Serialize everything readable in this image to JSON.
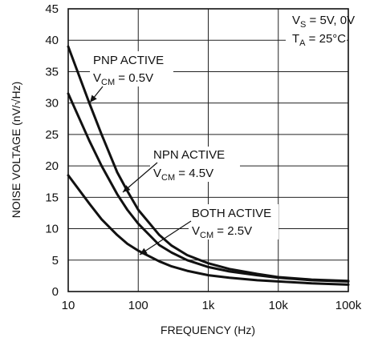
{
  "chart_data": {
    "type": "line",
    "xlabel": "FREQUENCY (Hz)",
    "ylabel": "NOISE VOLTAGE (nV/√Hz)",
    "x_scale": "log",
    "xlim": [
      10,
      100000
    ],
    "ylim": [
      0,
      45
    ],
    "grid": true,
    "x_ticks": [
      "10",
      "100",
      "1k",
      "10k",
      "100k"
    ],
    "y_ticks": [
      "0",
      "5",
      "10",
      "15",
      "20",
      "25",
      "30",
      "35",
      "40",
      "45"
    ],
    "conditions": {
      "vs_main": "V",
      "vs_sub": "S",
      "vs_rest": " = 5V, 0V",
      "ta_main": "T",
      "ta_sub": "A",
      "ta_rest": " = 25°C"
    },
    "series": [
      {
        "name": "PNP ACTIVE",
        "label_main": "PNP ACTIVE",
        "vcm_main": "V",
        "vcm_sub": "CM",
        "vcm_rest": " = 0.5V",
        "x": [
          10,
          20,
          30,
          50,
          70,
          100,
          200,
          300,
          500,
          1000,
          2000,
          5000,
          10000,
          30000,
          100000
        ],
        "values": [
          39,
          30,
          25,
          19,
          16,
          13,
          9,
          7.3,
          5.8,
          4.5,
          3.6,
          2.8,
          2.3,
          1.9,
          1.7
        ]
      },
      {
        "name": "NPN ACTIVE",
        "label_main": "NPN ACTIVE",
        "vcm_main": "V",
        "vcm_sub": "CM",
        "vcm_rest": " = 4.5V",
        "x": [
          10,
          20,
          30,
          50,
          70,
          100,
          200,
          300,
          500,
          1000,
          2000,
          5000,
          10000,
          30000,
          100000
        ],
        "values": [
          31.5,
          24,
          20,
          15.5,
          13,
          10.8,
          7.4,
          6.2,
          5,
          3.9,
          3.2,
          2.6,
          2.2,
          1.8,
          1.6
        ]
      },
      {
        "name": "BOTH ACTIVE",
        "label_main": "BOTH ACTIVE",
        "vcm_main": "V",
        "vcm_sub": "CM",
        "vcm_rest": " = 2.5V",
        "x": [
          10,
          20,
          30,
          50,
          70,
          100,
          200,
          300,
          500,
          1000,
          2000,
          5000,
          10000,
          30000,
          100000
        ],
        "values": [
          18.5,
          14,
          11.5,
          9,
          7.6,
          6.5,
          4.8,
          4,
          3.3,
          2.6,
          2.2,
          1.8,
          1.6,
          1.3,
          1.1
        ]
      }
    ]
  }
}
